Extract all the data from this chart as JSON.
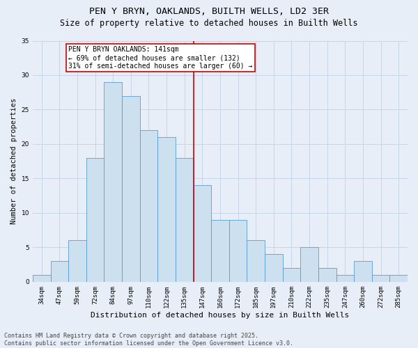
{
  "title": "PEN Y BRYN, OAKLANDS, BUILTH WELLS, LD2 3ER",
  "subtitle": "Size of property relative to detached houses in Builth Wells",
  "xlabel": "Distribution of detached houses by size in Builth Wells",
  "ylabel": "Number of detached properties",
  "categories": [
    "34sqm",
    "47sqm",
    "59sqm",
    "72sqm",
    "84sqm",
    "97sqm",
    "110sqm",
    "122sqm",
    "135sqm",
    "147sqm",
    "160sqm",
    "172sqm",
    "185sqm",
    "197sqm",
    "210sqm",
    "222sqm",
    "235sqm",
    "247sqm",
    "260sqm",
    "272sqm",
    "285sqm"
  ],
  "values": [
    1,
    3,
    6,
    18,
    29,
    27,
    22,
    21,
    18,
    14,
    9,
    9,
    6,
    4,
    2,
    5,
    2,
    1,
    3,
    1,
    1
  ],
  "bar_color": "#cce0f0",
  "bar_edge_color": "#5b9bd5",
  "vline_color": "#cc0000",
  "annotation_text": "PEN Y BRYN OAKLANDS: 141sqm\n← 69% of detached houses are smaller (132)\n31% of semi-detached houses are larger (60) →",
  "annotation_box_color": "#cc0000",
  "ylim": [
    0,
    35
  ],
  "yticks": [
    0,
    5,
    10,
    15,
    20,
    25,
    30,
    35
  ],
  "grid_color": "#c8d4e8",
  "background_color": "#e8eef8",
  "footer": "Contains HM Land Registry data © Crown copyright and database right 2025.\nContains public sector information licensed under the Open Government Licence v3.0.",
  "title_fontsize": 9.5,
  "subtitle_fontsize": 8.5,
  "ylabel_fontsize": 7.5,
  "xlabel_fontsize": 8,
  "tick_fontsize": 6.5,
  "annot_fontsize": 7,
  "footer_fontsize": 6,
  "vline_x_pos": 8.5
}
